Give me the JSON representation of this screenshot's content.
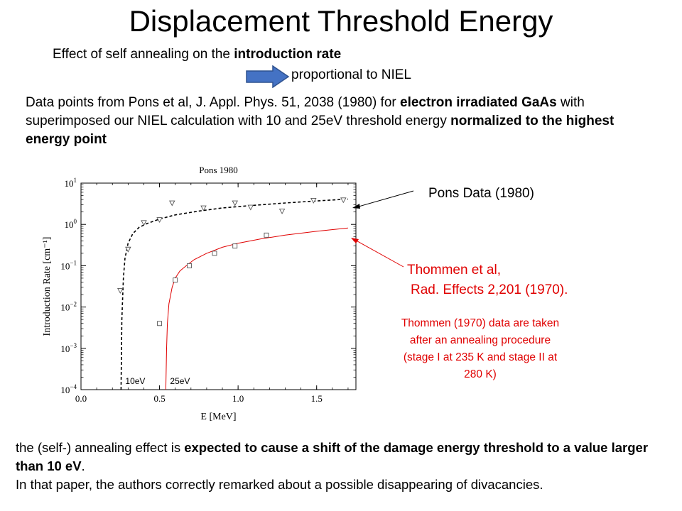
{
  "slide": {
    "title": "Displacement Threshold Energy",
    "subtitle_plain": "Effect of self annealing on the ",
    "subtitle_bold": "introduction rate",
    "arrow_text": "proportional to NIEL",
    "para_part1": "Data points from Pons et al, J. Appl. Phys. 51, 2038 (1980) for ",
    "para_bold1": "electron irradiated GaAs",
    "para_part2": " with superimposed our NIEL calculation with 10 and 25eV threshold energy ",
    "para_bold2": "normalized to the highest energy point",
    "pons_label": "Pons Data (1980)",
    "thommen_line1": "Thommen et al,",
    "thommen_line2": "Rad. Effects 2,201 (1970).",
    "thommen_note": "Thommen (1970) data are taken after an annealing procedure (stage I at 235 K and stage II at 280 K)",
    "bottom_part1": "the (self-) annealing effect is ",
    "bottom_bold": "expected to cause a shift of the damage energy threshold to a value larger than 10 eV",
    "bottom_part2": ".",
    "bottom_line2": "In that paper, the authors correctly remarked about a possible disappearing of divacancies.",
    "colors": {
      "red": "#e00000",
      "arrow_fill": "#4472c4",
      "arrow_stroke": "#2f528f"
    },
    "icons": {
      "arrow": "right-arrow-icon"
    }
  },
  "chart_data": {
    "type": "scatter",
    "title": "Pons 1980",
    "xlabel": "E [MeV]",
    "ylabel": "Introduction Rate [cm⁻¹]",
    "xlim": [
      0.0,
      1.75
    ],
    "ylim": [
      0.0001,
      10
    ],
    "yscale": "log",
    "xticks": [
      0.0,
      0.5,
      1.0,
      1.5
    ],
    "xtick_labels": [
      "0.0",
      "0.5",
      "1.0",
      "1.5"
    ],
    "ytick_exponents": [
      1,
      0,
      -1,
      -2,
      -3,
      -4
    ],
    "ytick_base": "10",
    "series": [
      {
        "marker": "triangle-down",
        "color": "#555555",
        "x": [
          0.25,
          0.3,
          0.4,
          0.5,
          0.58,
          0.78,
          0.98,
          1.08,
          1.28,
          1.48,
          1.67
        ],
        "y": [
          0.025,
          0.25,
          1.1,
          1.3,
          3.3,
          2.5,
          3.3,
          2.6,
          2.1,
          3.8,
          3.9
        ]
      },
      {
        "marker": "square",
        "color": "#555555",
        "x": [
          0.5,
          0.6,
          0.69,
          0.85,
          0.98,
          1.18
        ],
        "y": [
          0.004,
          0.045,
          0.1,
          0.2,
          0.3,
          0.55
        ]
      }
    ],
    "curves": [
      {
        "label": "10eV",
        "color": "#000000",
        "dash": true,
        "threshold": 0.255,
        "x": [
          0.255,
          0.26,
          0.27,
          0.28,
          0.3,
          0.33,
          0.37,
          0.42,
          0.5,
          0.6,
          0.75,
          0.9,
          1.1,
          1.3,
          1.5,
          1.7
        ],
        "y": [
          0.0001,
          0.005,
          0.05,
          0.15,
          0.35,
          0.6,
          0.85,
          1.05,
          1.35,
          1.7,
          2.1,
          2.5,
          2.9,
          3.3,
          3.7,
          4.1
        ]
      },
      {
        "label": "25eV",
        "color": "#e00000",
        "dash": false,
        "threshold": 0.54,
        "x": [
          0.54,
          0.545,
          0.55,
          0.56,
          0.58,
          0.6,
          0.63,
          0.67,
          0.72,
          0.8,
          0.9,
          1.0,
          1.15,
          1.3,
          1.5,
          1.7
        ],
        "y": [
          0.0001,
          0.001,
          0.004,
          0.012,
          0.03,
          0.05,
          0.075,
          0.1,
          0.14,
          0.2,
          0.28,
          0.35,
          0.45,
          0.55,
          0.68,
          0.82
        ]
      }
    ]
  }
}
